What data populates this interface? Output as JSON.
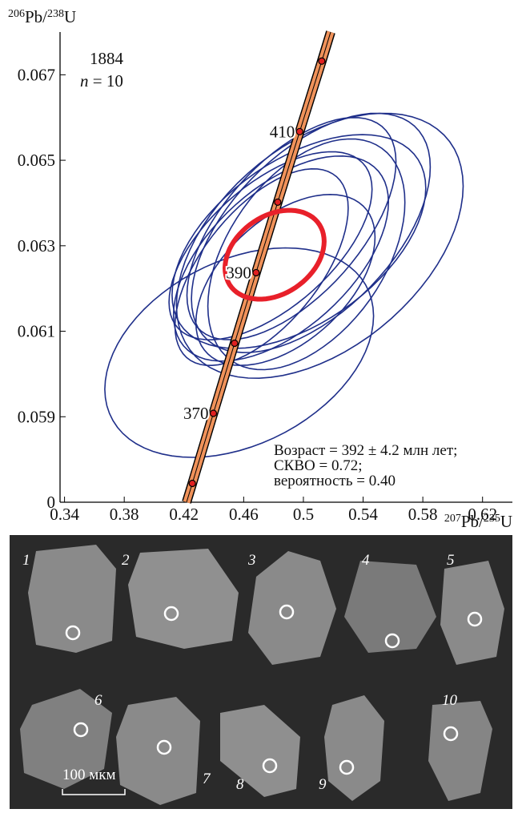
{
  "chart_data": {
    "type": "concordia",
    "y_label_parts": [
      "206",
      "Pb/",
      "238",
      "U"
    ],
    "x_label_parts": [
      "207",
      "Pb/",
      "235",
      "U"
    ],
    "xlim": [
      0.337,
      0.64
    ],
    "ylim": [
      0.057,
      0.068
    ],
    "xticks": [
      0.34,
      0.38,
      0.42,
      0.46,
      0.5,
      0.54,
      0.58,
      0.62
    ],
    "yticks": [
      {
        "value": 0.057,
        "label": "0"
      },
      0.059,
      0.061,
      0.063,
      0.065,
      0.067
    ],
    "annotations": [
      "1884",
      "n",
      "= 10",
      "Возраст = 392 ± 4.2 млн лет;",
      "СКВО = 0.72;",
      "вероятность = 0.40"
    ],
    "concordia": {
      "color": "#f0925a",
      "x": [
        0.4256,
        0.4397,
        0.4539,
        0.4683,
        0.4828,
        0.4975,
        0.5123
      ],
      "y": [
        0.05744,
        0.05908,
        0.06072,
        0.06237,
        0.06402,
        0.06567,
        0.06732
      ],
      "labels": [
        null,
        "370",
        null,
        "390",
        null,
        "410",
        null
      ]
    },
    "ellipses": {
      "color": "#1f2f8a",
      "x": [
        0.457,
        0.511,
        0.505,
        0.492,
        0.485,
        0.497,
        0.478,
        0.502,
        0.488,
        0.472
      ],
      "y": [
        0.0605,
        0.063,
        0.0633,
        0.0634,
        0.0627,
        0.0631,
        0.063,
        0.0628,
        0.0622,
        0.0625
      ],
      "sx": [
        0.09,
        0.096,
        0.08,
        0.07,
        0.072,
        0.085,
        0.068,
        0.066,
        0.06,
        0.058
      ],
      "sy": [
        0.00245,
        0.0031,
        0.0028,
        0.0026,
        0.0024,
        0.0025,
        0.0022,
        0.0027,
        0.002,
        0.0023
      ],
      "rho": [
        0.35,
        0.45,
        0.55,
        0.6,
        0.55,
        0.5,
        0.6,
        0.45,
        0.5,
        0.6
      ]
    },
    "mean_ellipse": {
      "color": "#e8202a",
      "x": 0.4807,
      "y": 0.06279,
      "sx": 0.0332,
      "sy": 0.00104,
      "rho": 0.3
    }
  },
  "image": {
    "grain_labels": [
      "1",
      "2",
      "3",
      "4",
      "5",
      "6",
      "7",
      "8",
      "9",
      "10"
    ],
    "scale_bar": "100 мкм"
  }
}
